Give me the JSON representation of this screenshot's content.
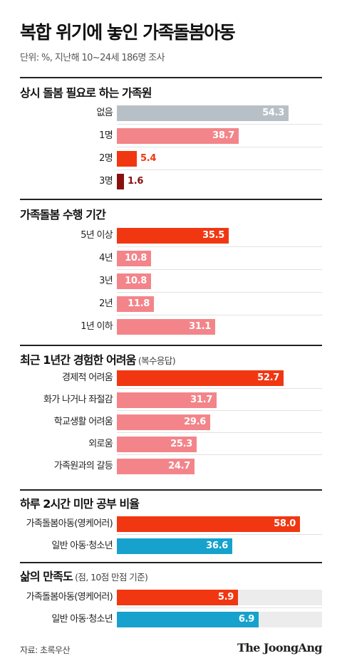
{
  "title": "복합 위기에 놓인 가족돌봄아동",
  "subtitle": "단위: %, 지난해 10~24세 186명 조사",
  "source": "자료: 초록우산",
  "logo": "The JoongAng",
  "colors": {
    "gray": "#b8c0c7",
    "pink": "#f3858a",
    "red": "#f03712",
    "darkred": "#8a1010",
    "blue": "#16a2cc",
    "track": "#ececec"
  },
  "chart_data": [
    {
      "type": "bar",
      "title": "상시 돌봄 필요로 하는 가족원",
      "categories": [
        "없음",
        "1명",
        "2명",
        "3명"
      ],
      "values": [
        54.3,
        38.7,
        5.4,
        1.6
      ],
      "value_labels": [
        "54.3",
        "38.7",
        "5.4",
        "1.6"
      ],
      "colors": [
        "gray",
        "pink",
        "red",
        "darkred"
      ],
      "xlim": [
        0,
        65
      ]
    },
    {
      "type": "bar",
      "title": "가족돌봄 수행 기간",
      "categories": [
        "5년 이상",
        "4년",
        "3년",
        "2년",
        "1년 이하"
      ],
      "values": [
        35.5,
        10.8,
        10.8,
        11.8,
        31.1
      ],
      "value_labels": [
        "35.5",
        "10.8",
        "10.8",
        "11.8",
        "31.1"
      ],
      "colors": [
        "red",
        "pink",
        "pink",
        "pink",
        "pink"
      ],
      "xlim": [
        0,
        65
      ]
    },
    {
      "type": "bar",
      "title": "최근 1년간 경험한 어려움",
      "note": "(복수응답)",
      "categories": [
        "경제적 어려움",
        "화가 나거나 좌절감",
        "학교생활 어려움",
        "외로움",
        "가족원과의 갈등"
      ],
      "values": [
        52.7,
        31.7,
        29.6,
        25.3,
        24.7
      ],
      "value_labels": [
        "52.7",
        "31.7",
        "29.6",
        "25.3",
        "24.7"
      ],
      "colors": [
        "red",
        "pink",
        "pink",
        "pink",
        "pink"
      ],
      "xlim": [
        0,
        65
      ]
    },
    {
      "type": "bar",
      "title": "하루 2시간 미만 공부 비율",
      "categories": [
        "가족돌봄아동(영케어러)",
        "일반 아동·청소년"
      ],
      "values": [
        58.0,
        36.6
      ],
      "value_labels": [
        "58.0",
        "36.6"
      ],
      "colors": [
        "red",
        "blue"
      ],
      "xlim": [
        0,
        65
      ]
    },
    {
      "type": "bar",
      "title": "삶의 만족도",
      "note": "(점, 10점 만점 기준)",
      "categories": [
        "가족돌봄아동(영케어러)",
        "일반 아동·청소년"
      ],
      "values": [
        5.9,
        6.9
      ],
      "value_labels": [
        "5.9",
        "6.9"
      ],
      "colors": [
        "red",
        "blue"
      ],
      "xlim": [
        0,
        10
      ],
      "track": true
    }
  ]
}
